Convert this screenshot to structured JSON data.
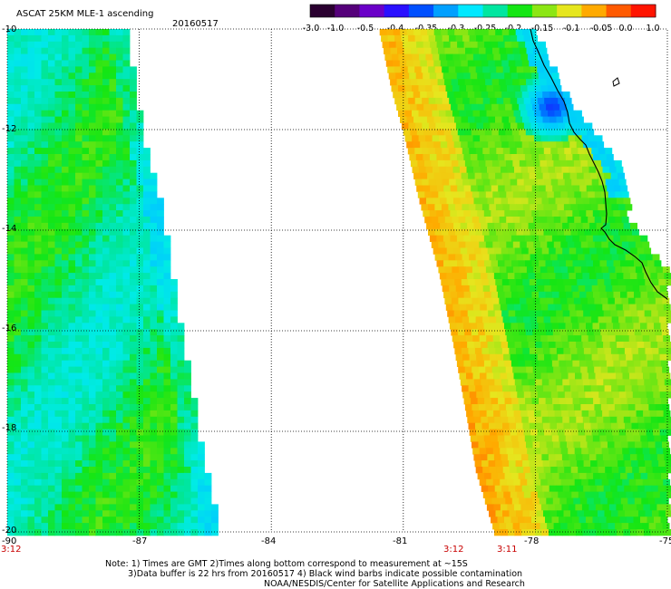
{
  "header": {
    "title": "ASCAT 25KM MLE-1 ascending",
    "date": "20160517"
  },
  "colorbar": {
    "labels": [
      "-3.0",
      "-1.0",
      "-0.5",
      "-0.4",
      "-0.35",
      "-0.3",
      "-0.25",
      "-0.2",
      "-0.15",
      "-0.1",
      "-0.05",
      "0.0",
      "1.0"
    ],
    "colors": [
      "#2a0030",
      "#55007a",
      "#6a00c8",
      "#2a10ff",
      "#0050ff",
      "#00a0ff",
      "#00e8ff",
      "#00e6a0",
      "#14e614",
      "#8ce614",
      "#e6e61e",
      "#ffaa00",
      "#ff5a00",
      "#ff1400"
    ]
  },
  "map": {
    "lon_ticks": [
      "-90",
      "-87",
      "-84",
      "-81",
      "-78",
      "-75"
    ],
    "lat_ticks": [
      "-10",
      "-12",
      "-14",
      "-16",
      "-18",
      "-20"
    ],
    "grid": true,
    "coastline_color": "#000000"
  },
  "time_labels": [
    {
      "text": "3:12",
      "lon": -90
    },
    {
      "text": "3:12",
      "lon": -80.0
    },
    {
      "text": "3:11",
      "lon": -78.6
    }
  ],
  "footer": {
    "line1": "Note: 1) Times are GMT 2)Times along bottom correspond to measurement at ~15S",
    "line2": "3)Data buffer is 22 hrs from 20160517 4) Black wind barbs indicate possible contamination",
    "line3": "NOAA/NESDIS/Center for Satellite Applications and Research"
  }
}
